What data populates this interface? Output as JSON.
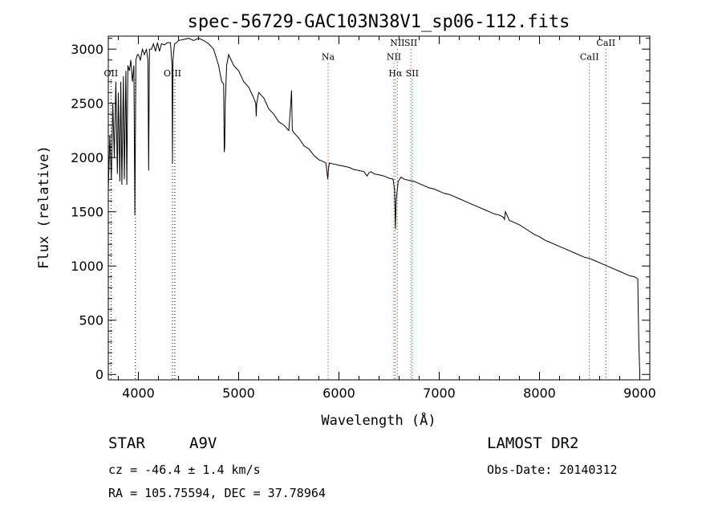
{
  "chart_data": {
    "type": "line",
    "title": "spec-56729-GAC103N38V1_sp06-112.fits",
    "xlabel": "Wavelength (Å)",
    "ylabel": "Flux (relative)",
    "xlim": [
      3700,
      9100
    ],
    "ylim": [
      -50,
      3120
    ],
    "x_ticks": [
      4000,
      5000,
      6000,
      7000,
      8000,
      9000
    ],
    "y_ticks": [
      0,
      500,
      1000,
      1500,
      2000,
      2500,
      3000
    ],
    "grid": false,
    "series": [
      {
        "x": [
          3700,
          3715,
          3730,
          3745,
          3760,
          3775,
          3790,
          3800,
          3815,
          3825,
          3835,
          3850,
          3860,
          3875,
          3885,
          3895,
          3910,
          3925,
          3940,
          3955,
          3965,
          3975,
          3990,
          4000,
          4020,
          4040,
          4060,
          4080,
          4095,
          4102,
          4110,
          4130,
          4150,
          4170,
          4190,
          4210,
          4230,
          4260,
          4290,
          4320,
          4335,
          4340,
          4345,
          4360,
          4380,
          4400,
          4450,
          4500,
          4550,
          4600,
          4650,
          4700,
          4750,
          4800,
          4830,
          4850,
          4856,
          4861,
          4866,
          4880,
          4900,
          4950,
          5000,
          5050,
          5100,
          5150,
          5170,
          5175,
          5180,
          5200,
          5250,
          5300,
          5350,
          5400,
          5450,
          5500,
          5520,
          5527,
          5535,
          5550,
          5600,
          5650,
          5700,
          5750,
          5800,
          5850,
          5870,
          5889,
          5896,
          5905,
          5950,
          6000,
          6050,
          6100,
          6150,
          6200,
          6250,
          6280,
          6300,
          6320,
          6350,
          6400,
          6450,
          6500,
          6540,
          6555,
          6563,
          6570,
          6590,
          6620,
          6650,
          6700,
          6750,
          6800,
          6850,
          6900,
          6950,
          7000,
          7050,
          7100,
          7150,
          7200,
          7250,
          7300,
          7350,
          7400,
          7450,
          7500,
          7550,
          7600,
          7640,
          7650,
          7660,
          7700,
          7750,
          7800,
          7850,
          7900,
          7950,
          8000,
          8050,
          8100,
          8150,
          8200,
          8250,
          8300,
          8350,
          8400,
          8450,
          8500,
          8550,
          8600,
          8650,
          8700,
          8750,
          8800,
          8850,
          8900,
          8950,
          8980,
          8985,
          8990,
          9000
        ],
        "y": [
          1700,
          2200,
          1800,
          2500,
          2000,
          2700,
          1850,
          2600,
          1780,
          2700,
          1750,
          2750,
          1800,
          2800,
          1750,
          2850,
          2800,
          2900,
          2700,
          2850,
          1470,
          2900,
          2950,
          2950,
          2900,
          3000,
          2950,
          3000,
          2900,
          1880,
          3000,
          3000,
          3050,
          2980,
          3060,
          2980,
          3050,
          3040,
          3060,
          3060,
          2850,
          1950,
          2900,
          3050,
          3060,
          3080,
          3090,
          3100,
          3080,
          3100,
          3080,
          3050,
          3000,
          2850,
          2700,
          2680,
          2050,
          2100,
          2500,
          2850,
          2950,
          2850,
          2800,
          2700,
          2650,
          2550,
          2500,
          2380,
          2500,
          2600,
          2550,
          2450,
          2400,
          2330,
          2300,
          2250,
          2500,
          2620,
          2250,
          2230,
          2180,
          2110,
          2080,
          2020,
          1980,
          1960,
          1950,
          1800,
          1900,
          1950,
          1940,
          1930,
          1920,
          1910,
          1890,
          1880,
          1870,
          1830,
          1860,
          1870,
          1850,
          1840,
          1830,
          1810,
          1800,
          1700,
          1340,
          1600,
          1780,
          1820,
          1800,
          1790,
          1780,
          1760,
          1740,
          1720,
          1710,
          1690,
          1670,
          1660,
          1640,
          1620,
          1600,
          1580,
          1560,
          1540,
          1520,
          1500,
          1480,
          1470,
          1450,
          1430,
          1500,
          1420,
          1400,
          1380,
          1350,
          1320,
          1290,
          1270,
          1240,
          1220,
          1200,
          1180,
          1160,
          1140,
          1120,
          1100,
          1080,
          1070,
          1050,
          1030,
          1010,
          990,
          970,
          950,
          930,
          910,
          900,
          880,
          600,
          300,
          0
        ]
      }
    ],
    "line_markers": [
      {
        "label": "OII",
        "x": 3727,
        "color": "#000000",
        "label_y": 2750
      },
      {
        "label": "",
        "x": 3970,
        "color": "#000000",
        "label_y": 2750
      },
      {
        "label": "OIII",
        "x": 4340,
        "color": "#000000",
        "label_y": 2750
      },
      {
        "label": "",
        "x": 4363,
        "color": "#000000",
        "label_y": 2750
      },
      {
        "label": "Na",
        "x": 5892,
        "color": "#ff0000",
        "label_y": 2900
      },
      {
        "label": "NII",
        "x": 6548,
        "color": "#ff0000",
        "label_y": 2900
      },
      {
        "label": "NII",
        "x": 6583,
        "color": "#ff0000",
        "label_y": 3030
      },
      {
        "label": "Hα",
        "x": 6563,
        "color": "#ff0000",
        "label_y": 2750
      },
      {
        "label": "SII",
        "x": 6717,
        "color": "#ff0000",
        "label_y": 3030
      },
      {
        "label": "SII",
        "x": 6731,
        "color": "#ff0000",
        "label_y": 2750
      },
      {
        "label": "CaII",
        "x": 8498,
        "color": "#ff0000",
        "label_y": 2900
      },
      {
        "label": "CaII",
        "x": 8662,
        "color": "#ff0000",
        "label_y": 3030
      }
    ]
  },
  "info": {
    "object_type": "STAR",
    "subclass": "A9V",
    "survey": "LAMOST DR2",
    "cz": "cz = -46.4 ± 1.4 km/s",
    "obs_date": "Obs-Date: 20140312",
    "radec": "RA = 105.75594, DEC =  37.78964"
  }
}
